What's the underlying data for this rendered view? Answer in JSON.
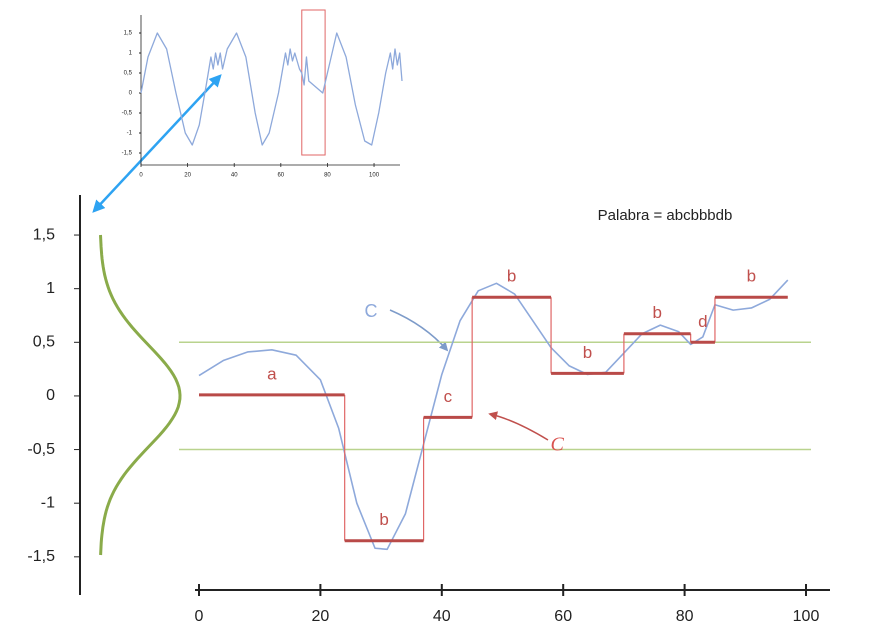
{
  "chart_data": [
    {
      "type": "line",
      "annotation": "Palabra = abcbbbdb",
      "xlim": [
        0,
        100
      ],
      "ylim": [
        -1.8,
        1.85
      ],
      "xticks": [
        0,
        20,
        40,
        60,
        80,
        100
      ],
      "yticks": [
        {
          "value": 1.5,
          "label": "1,5"
        },
        1,
        {
          "value": 0.5,
          "label": "0,5"
        },
        0,
        {
          "value": -0.5,
          "label": "-0,5"
        },
        -1,
        {
          "value": -1.5,
          "label": "-1,5"
        }
      ],
      "breakpoints": [
        0.5,
        -0.5
      ],
      "breakpoint_color": "#b9d38e",
      "series": [
        {
          "name": "C",
          "color": "#8ea9db",
          "x": [
            0,
            4,
            8,
            12,
            16,
            20,
            23,
            26,
            29,
            31,
            34,
            37,
            40,
            43,
            46,
            49,
            52,
            55,
            58,
            61,
            64,
            67,
            70,
            73,
            76,
            79,
            81,
            83,
            85,
            88,
            91,
            94,
            97
          ],
          "values": [
            0.19,
            0.33,
            0.41,
            0.43,
            0.38,
            0.15,
            -0.3,
            -1.0,
            -1.42,
            -1.43,
            -1.1,
            -0.45,
            0.2,
            0.7,
            0.98,
            1.05,
            0.95,
            0.7,
            0.45,
            0.28,
            0.2,
            0.22,
            0.4,
            0.58,
            0.66,
            0.6,
            0.48,
            0.55,
            0.85,
            0.8,
            0.82,
            0.9,
            1.08
          ]
        }
      ],
      "segments": {
        "name": "C⃗",
        "color": "#b94a48",
        "labels": [
          "a",
          "b",
          "c",
          "b",
          "b",
          "b",
          "d",
          "b"
        ],
        "edges": [
          0,
          24,
          37,
          45,
          58,
          70,
          81,
          85,
          97
        ],
        "values": [
          0.01,
          -1.35,
          -0.2,
          0.92,
          0.21,
          0.58,
          0.5,
          0.92
        ]
      }
    },
    {
      "type": "line",
      "xlim": [
        0,
        112
      ],
      "ylim": [
        -1.5,
        1.5
      ],
      "xticks": [
        0,
        20,
        40,
        60,
        80,
        100
      ],
      "yticks": [
        {
          "value": 1.5,
          "label": "1,5"
        },
        1,
        {
          "value": 0.5,
          "label": "0,5"
        },
        0,
        {
          "value": -0.5,
          "label": "-0,5"
        },
        -1,
        {
          "value": -1.5,
          "label": "-1,5"
        }
      ],
      "highlight": [
        69,
        79
      ],
      "highlight_color": "#e06666",
      "series": [
        {
          "color": "#8ea9db",
          "x": [
            0,
            3,
            7,
            11,
            15,
            19,
            22,
            25,
            28,
            30,
            31,
            32,
            33,
            34,
            35,
            37,
            41,
            45,
            49,
            52,
            55,
            59,
            62,
            63,
            64,
            65,
            66,
            68,
            69,
            70,
            71,
            72,
            76,
            78,
            80,
            84,
            88,
            92,
            96,
            99,
            102,
            105,
            107,
            108,
            109,
            110,
            111,
            112
          ],
          "values": [
            0,
            0.9,
            1.5,
            1.1,
            0,
            -1.0,
            -1.3,
            -0.8,
            0.2,
            0.9,
            0.6,
            1.0,
            0.7,
            1.0,
            0.6,
            1.1,
            1.5,
            0.9,
            -0.5,
            -1.3,
            -1.0,
            0,
            1.0,
            0.7,
            1.1,
            0.8,
            1.0,
            0.6,
            0.5,
            0.2,
            0.9,
            0.3,
            0.1,
            0,
            0.5,
            1.5,
            0.9,
            -0.3,
            -1.2,
            -1.3,
            -0.5,
            0.5,
            1.0,
            0.6,
            1.1,
            0.7,
            1.0,
            0.3
          ]
        }
      ]
    }
  ]
}
